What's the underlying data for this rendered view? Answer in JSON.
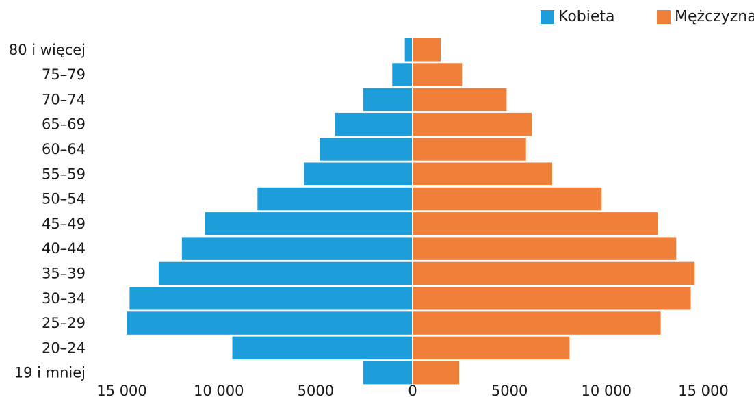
{
  "chart_data": {
    "type": "bar",
    "orientation": "horizontal-population-pyramid",
    "categories": [
      "80 i więcej",
      "75–79",
      "70–74",
      "65–69",
      "60–64",
      "55–59",
      "50–54",
      "45–49",
      "40–44",
      "35–39",
      "30–34",
      "25–29",
      "20–24",
      "19 i mniej"
    ],
    "series": [
      {
        "name": "Kobieta",
        "color": "#1e9ddb",
        "side": "left",
        "values": [
          400,
          1050,
          2550,
          4000,
          4800,
          5600,
          8000,
          10700,
          11900,
          13100,
          14600,
          14750,
          9300,
          2550
        ]
      },
      {
        "name": "Mężczyzna",
        "color": "#f07f3a",
        "side": "right",
        "values": [
          1450,
          2550,
          4850,
          6150,
          5850,
          7200,
          9750,
          12650,
          13600,
          14550,
          14350,
          12800,
          8100,
          2400
        ]
      }
    ],
    "x_ticks": [
      "15 000",
      "10 000",
      "5000",
      "0",
      "5000",
      "10 000",
      "15 000"
    ],
    "x_tick_values": [
      -15000,
      -10000,
      -5000,
      0,
      5000,
      10000,
      15000
    ],
    "xlim": [
      -15000,
      15000
    ],
    "legend_position": "top-right",
    "grid": false
  },
  "legend": {
    "kobieta": "Kobieta",
    "mezczyzna": "Mężczyzna"
  }
}
